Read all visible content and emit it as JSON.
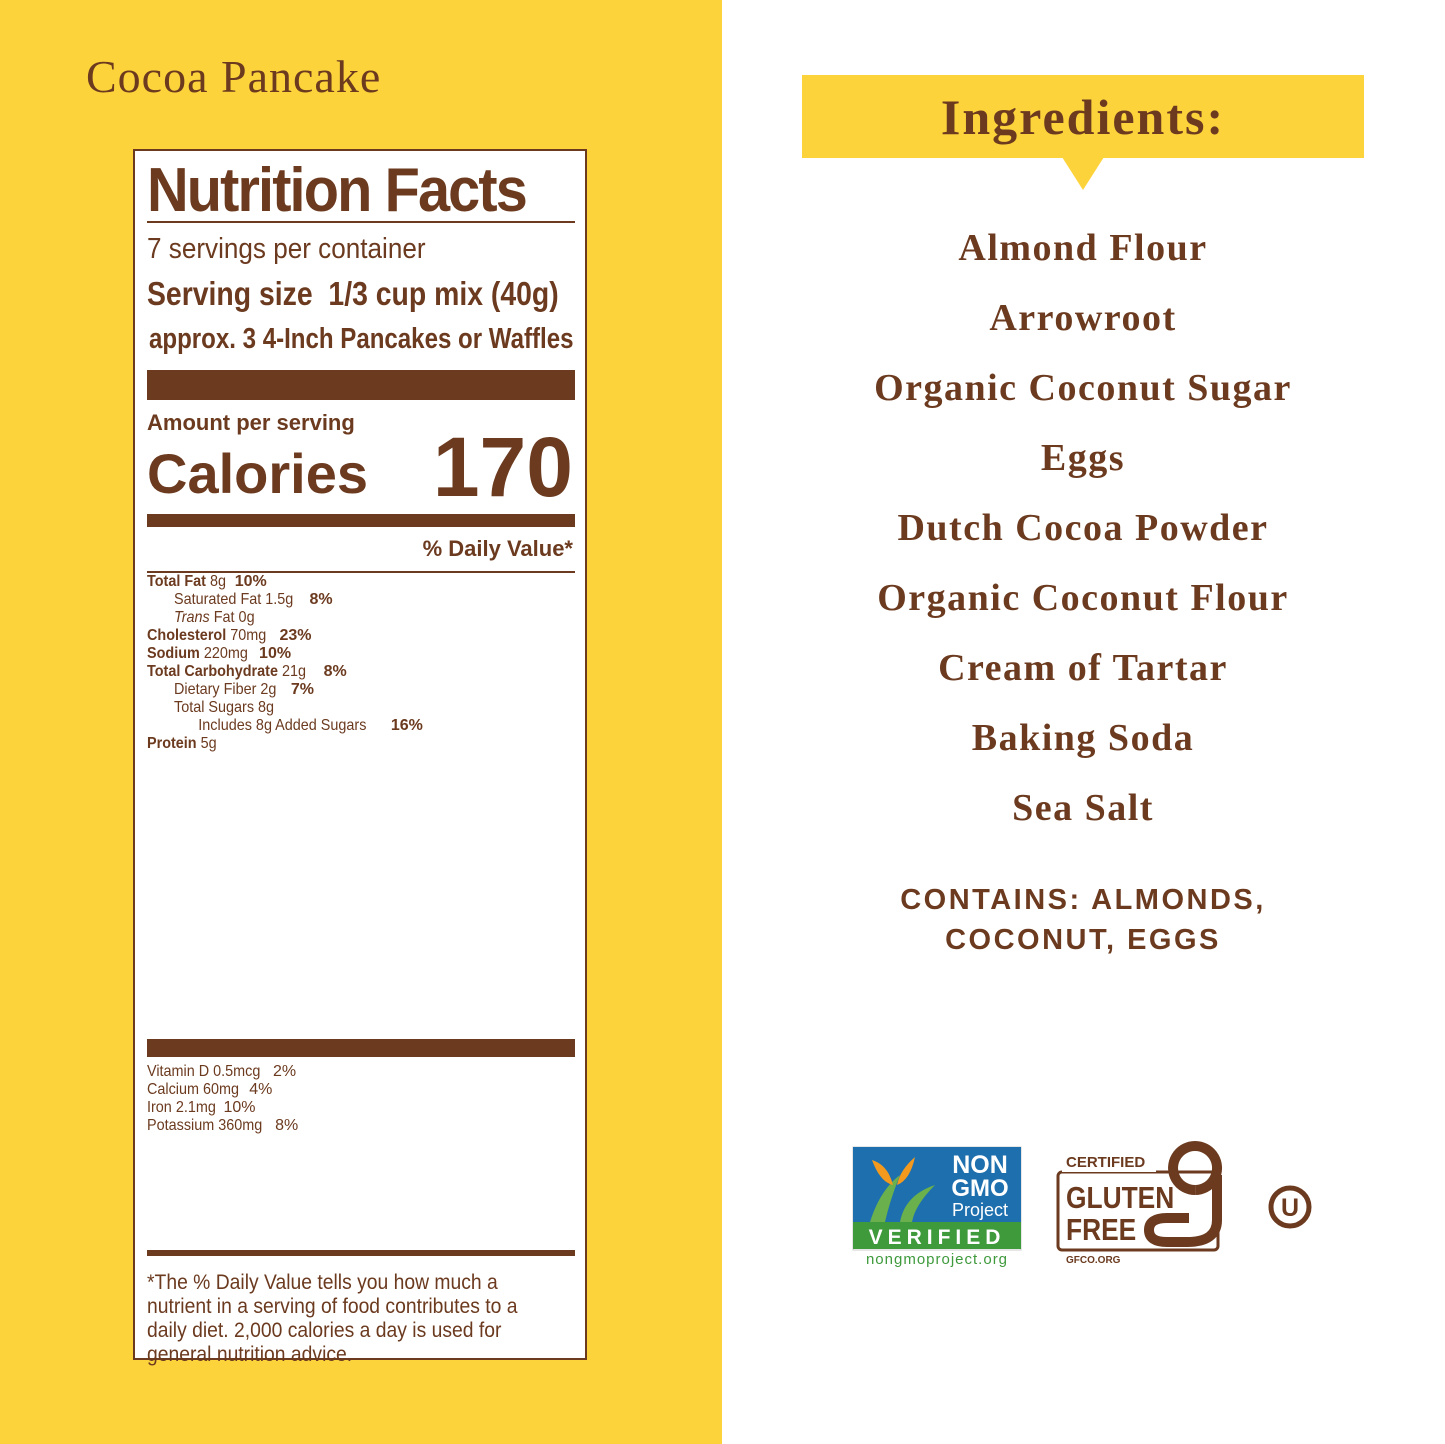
{
  "title": "Cocoa Pancake",
  "nutrition": {
    "heading": "Nutrition Facts",
    "servings": "7 servings per container",
    "serving_size_label": "Serving size",
    "serving_size": "1/3 cup mix (40g)",
    "serving_note": "approx. 3 4-Inch Pancakes or Waffles",
    "amount_label": "Amount per serving",
    "calories_label": "Calories",
    "calories": "170",
    "dv_header": "% Daily Value*",
    "rows": [
      {
        "bold": "Total Fat",
        "text": "8g",
        "dv": "10%",
        "sub": [
          {
            "text": "Saturated Fat 1.5g",
            "dv": "8%"
          },
          {
            "italic": "Trans",
            "text": "Fat 0g"
          }
        ]
      },
      {
        "bold": "Cholesterol",
        "text": "70mg",
        "dv": "23%"
      },
      {
        "bold": "Sodium",
        "text": "220mg",
        "dv": "10%"
      },
      {
        "bold": "Total Carbohydrate",
        "text": "21g",
        "dv": "8%",
        "sub": [
          {
            "text": "Dietary Fiber 2g",
            "dv": "7%"
          },
          {
            "text": "Total Sugars 8g",
            "sub": [
              {
                "text": "Includes 8g Added Sugars",
                "dv": "16%"
              }
            ]
          }
        ]
      },
      {
        "bold": "Protein",
        "text": "5g"
      }
    ],
    "vitamins": [
      {
        "text": "Vitamin D 0.5mcg",
        "dv": "2%"
      },
      {
        "text": "Calcium 60mg",
        "dv": "4%"
      },
      {
        "text": "Iron 2.1mg",
        "dv": "10%"
      },
      {
        "text": "Potassium 360mg",
        "dv": "8%"
      }
    ],
    "footnote": "*The % Daily Value tells you how much a nutrient in a serving of food contributes to a daily diet. 2,000 calories a day is used for general nutrition advice."
  },
  "ingredients": {
    "heading": "Ingredients:",
    "items": [
      "Almond Flour",
      "Arrowroot",
      "Organic Coconut Sugar",
      "Eggs",
      "Dutch Cocoa Powder",
      "Organic Coconut Flour",
      "Cream of Tartar",
      "Baking Soda",
      "Sea Salt"
    ],
    "contains": [
      "CONTAINS: ALMONDS,",
      "COCONUT, EGGS"
    ]
  },
  "badges": {
    "non_gmo": {
      "line1": "NON",
      "line2": "GMO",
      "line3": "Project",
      "verified": "VERIFIED",
      "url": "nongmoproject.org"
    },
    "gluten_free": {
      "certified": "CERTIFIED",
      "line1": "GLUTEN",
      "line2": "FREE",
      "url": "GFCO.ORG"
    },
    "kosher": "U"
  }
}
